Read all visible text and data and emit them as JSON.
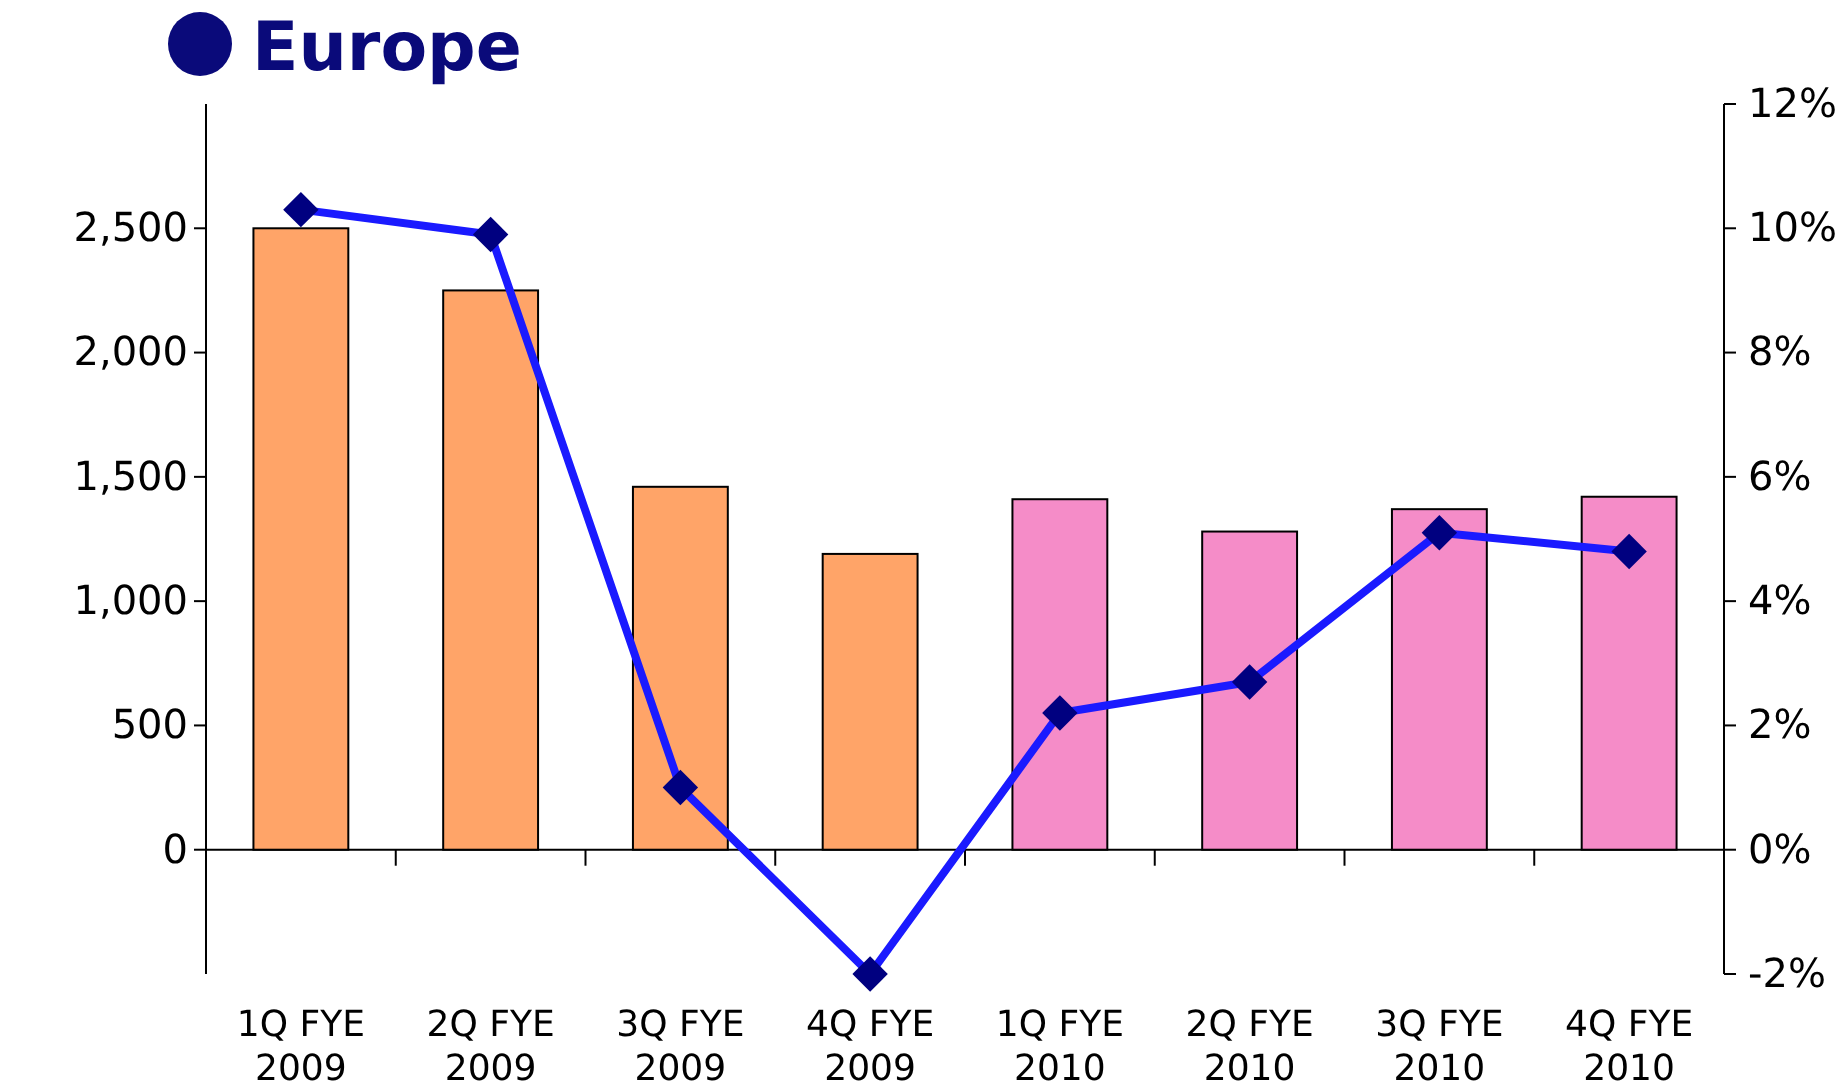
{
  "chart_data": {
    "type": "bar",
    "title": "Europe",
    "categories": [
      "1Q FYE 2009",
      "2Q FYE 2009",
      "3Q FYE 2009",
      "4Q FYE 2009",
      "1Q FYE 2010",
      "2Q FYE 2010",
      "3Q FYE 2010",
      "4Q FYE 2010"
    ],
    "series": [
      {
        "colors": [
          "#ffa468",
          "#ffa468",
          "#ffa468",
          "#ffa468",
          "#f58cc8",
          "#f58cc8",
          "#f58cc8",
          "#f58cc8"
        ],
        "values": [
          2500,
          2250,
          1460,
          1190,
          1410,
          1280,
          1370,
          1420
        ]
      },
      {
        "type": "line",
        "axis": "y2",
        "color": "#1a1aff",
        "marker": "diamond",
        "values": [
          10.3,
          9.9,
          1.0,
          -2.0,
          2.2,
          2.7,
          5.1,
          4.8
        ]
      }
    ],
    "ylim": [
      -500,
      3000
    ],
    "yticks": [
      0,
      500,
      {
        "value": 1000,
        "label": "1,000"
      },
      {
        "value": 1500,
        "label": "1,500"
      },
      {
        "value": 2000,
        "label": "2,000"
      },
      {
        "value": 2500,
        "label": "2,500"
      }
    ],
    "y2lim": [
      -2,
      12
    ],
    "y2ticks": [
      {
        "value": -2,
        "label": "-2%"
      },
      {
        "value": 0,
        "label": "0%"
      },
      {
        "value": 2,
        "label": "2%"
      },
      {
        "value": 4,
        "label": "4%"
      },
      {
        "value": 6,
        "label": "6%"
      },
      {
        "value": 8,
        "label": "8%"
      },
      {
        "value": 10,
        "label": "10%"
      },
      {
        "value": 12,
        "label": "12%"
      }
    ],
    "tick_labels": "xy"
  }
}
